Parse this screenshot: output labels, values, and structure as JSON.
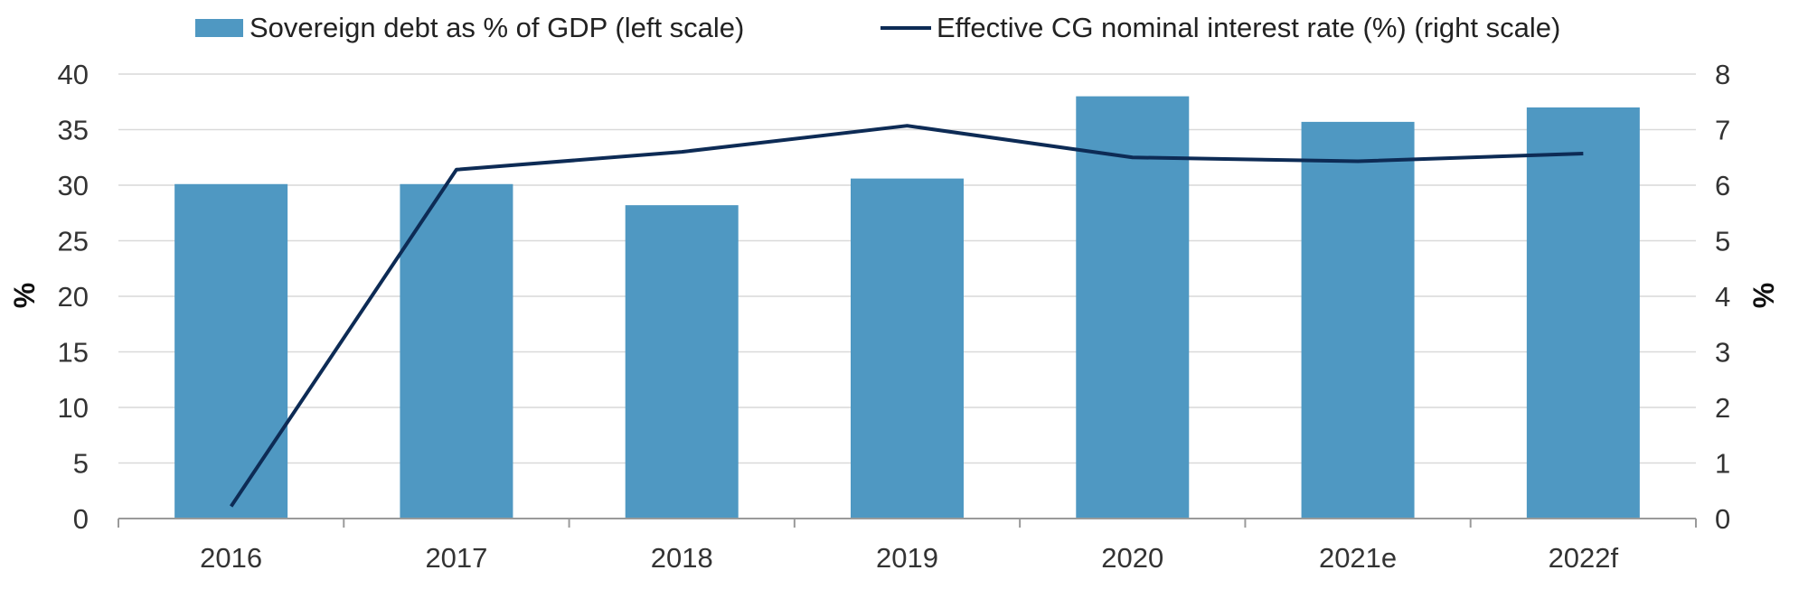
{
  "chart_data": {
    "type": "bar",
    "categories": [
      "2016",
      "2017",
      "2018",
      "2019",
      "2020",
      "2021e",
      "2022f"
    ],
    "series": [
      {
        "name": "Sovereign debt as % of GDP (left scale)",
        "type": "bar",
        "axis": "left",
        "color": "#4f98c2",
        "values": [
          30.1,
          30.1,
          28.2,
          30.6,
          38.0,
          35.7,
          37.0
        ]
      },
      {
        "name": "Effective CG nominal interest rate (%) (right scale)",
        "type": "line",
        "axis": "right",
        "color": "#0d2b55",
        "values": [
          0.22,
          6.28,
          6.6,
          7.07,
          6.5,
          6.43,
          6.57
        ]
      }
    ],
    "ylabel": "%",
    "y2label": "%",
    "ylim": [
      0,
      40
    ],
    "y2lim": [
      0,
      8
    ],
    "yticks": [
      "0",
      "5",
      "10",
      "15",
      "20",
      "25",
      "30",
      "35",
      "40"
    ],
    "y2ticks": [
      "0",
      "1",
      "2",
      "3",
      "4",
      "5",
      "6",
      "7",
      "8"
    ],
    "grid": true,
    "legend_position": "top"
  }
}
